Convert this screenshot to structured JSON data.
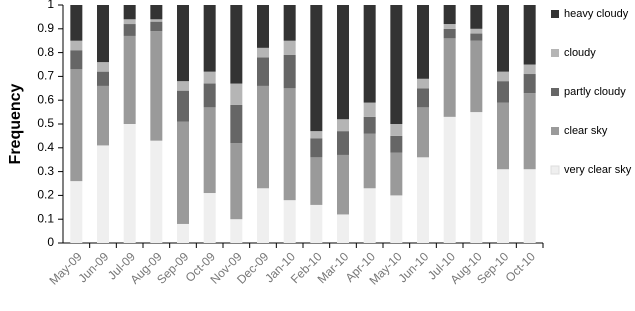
{
  "chart_data": {
    "type": "stacked_bar",
    "y_label": "Frequency",
    "categories": [
      "May-09",
      "Jun-09",
      "Jul-09",
      "Aug-09",
      "Sep-09",
      "Oct-09",
      "Nov-09",
      "Dec-09",
      "Jan-10",
      "Feb-10",
      "Mar-10",
      "Apr-10",
      "May-10",
      "Jun-10",
      "Jul-10",
      "Aug-10",
      "Sep-10",
      "Oct-10"
    ],
    "series": [
      {
        "name": "very clear sky",
        "color": "#efefef",
        "values": [
          0.26,
          0.41,
          0.5,
          0.43,
          0.08,
          0.21,
          0.1,
          0.23,
          0.18,
          0.16,
          0.12,
          0.23,
          0.2,
          0.36,
          0.53,
          0.55,
          0.31,
          0.31
        ]
      },
      {
        "name": "clear sky",
        "color": "#9a9a9a",
        "values": [
          0.47,
          0.25,
          0.37,
          0.46,
          0.43,
          0.36,
          0.32,
          0.43,
          0.47,
          0.2,
          0.25,
          0.23,
          0.18,
          0.21,
          0.33,
          0.3,
          0.28,
          0.32
        ]
      },
      {
        "name": "partly cloudy",
        "color": "#666666",
        "values": [
          0.08,
          0.06,
          0.05,
          0.04,
          0.13,
          0.1,
          0.16,
          0.12,
          0.14,
          0.08,
          0.1,
          0.07,
          0.07,
          0.08,
          0.04,
          0.03,
          0.09,
          0.08
        ]
      },
      {
        "name": "cloudy",
        "color": "#b5b5b5",
        "values": [
          0.04,
          0.04,
          0.02,
          0.01,
          0.04,
          0.05,
          0.09,
          0.04,
          0.06,
          0.03,
          0.05,
          0.06,
          0.05,
          0.04,
          0.02,
          0.02,
          0.04,
          0.04
        ]
      },
      {
        "name": "heavy cloudy",
        "color": "#333333",
        "values": [
          0.15,
          0.24,
          0.06,
          0.06,
          0.32,
          0.28,
          0.33,
          0.18,
          0.15,
          0.53,
          0.48,
          0.41,
          0.5,
          0.31,
          0.08,
          0.1,
          0.28,
          0.25
        ]
      }
    ],
    "ylim": [
      0,
      1
    ],
    "yticks": [
      0,
      0.1,
      0.2,
      0.3,
      0.4,
      0.5,
      0.6,
      0.7,
      0.8,
      0.9,
      1
    ],
    "legend": "right"
  }
}
